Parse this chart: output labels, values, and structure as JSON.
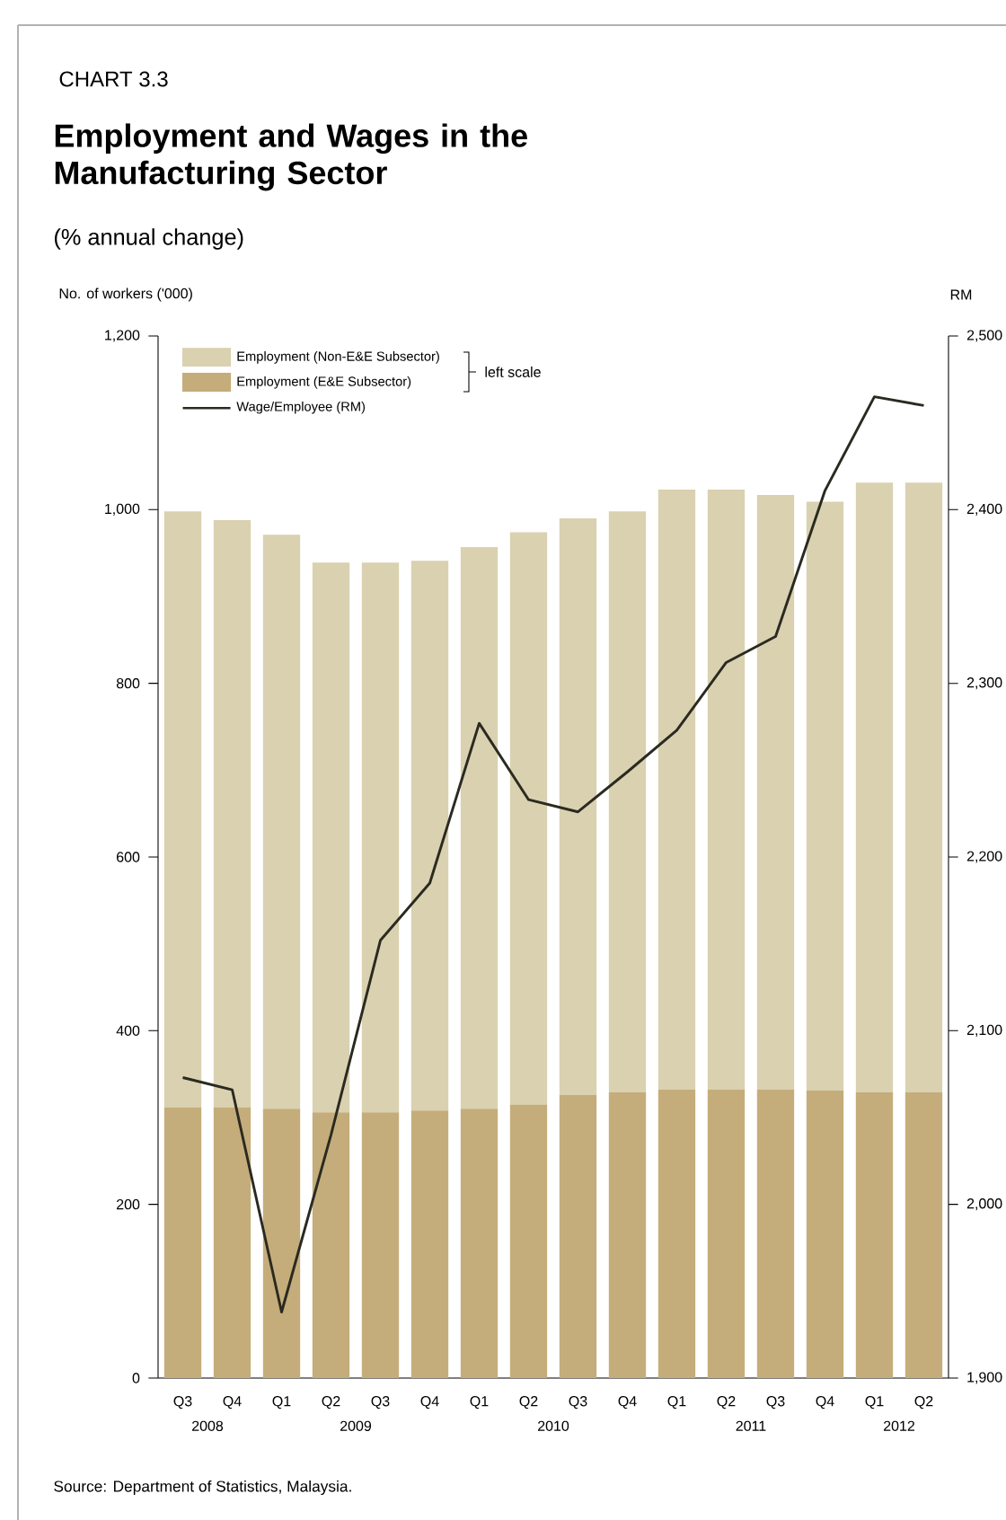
{
  "chart_data": {
    "type": "bar",
    "stacked": true,
    "title": "Employment and Wages in the Manufacturing Sector",
    "subtitle": "(% annual change)",
    "ylabel": "No. of workers ('000)",
    "y2label": "RM",
    "annotations": [
      "CHART 3.3",
      "left scale",
      "2008",
      "2009",
      "2010",
      "2011",
      "2012",
      "Source: Department of Statistics, Malaysia."
    ],
    "categories": [
      "Q3",
      "Q4",
      "Q1",
      "Q2",
      "Q3",
      "Q4",
      "Q1",
      "Q2",
      "Q3",
      "Q4",
      "Q1",
      "Q2",
      "Q3",
      "Q4",
      "Q1",
      "Q2"
    ],
    "series": [
      {
        "name": "Employment (E&E Subsector)",
        "color": "#c4ad7a",
        "values": [
          312,
          312,
          310,
          306,
          306,
          308,
          310,
          315,
          326,
          329,
          332,
          332,
          332,
          331,
          329,
          329
        ]
      },
      {
        "name": "Employment (Non-E&E Subsector)",
        "color": "#d9d1b0",
        "values": [
          686,
          676,
          661,
          633,
          633,
          633,
          647,
          659,
          664,
          669,
          691,
          691,
          685,
          678,
          702,
          702
        ]
      },
      {
        "name": "Wage/Employee (RM)",
        "type": "line",
        "axis": "y2",
        "color": "#2b2a20",
        "values": [
          2073,
          2066,
          1938,
          2040,
          2152,
          2185,
          2277,
          2233,
          2226,
          2249,
          2273,
          2312,
          2327,
          2411,
          2465,
          2460
        ]
      }
    ],
    "ylim": [
      0,
      1200
    ],
    "yticks": [
      0,
      200,
      400,
      600,
      800,
      {
        "value": 1000,
        "label": "1,000"
      },
      {
        "value": 1200,
        "label": "1,200"
      }
    ],
    "y2lim": [
      1900,
      2500
    ],
    "y2ticks": [
      {
        "value": 1900,
        "label": "1,900"
      },
      {
        "value": 2000,
        "label": "2,000"
      },
      {
        "value": 2100,
        "label": "2,100"
      },
      {
        "value": 2200,
        "label": "2,200"
      },
      {
        "value": 2300,
        "label": "2,300"
      },
      {
        "value": 2400,
        "label": "2,400"
      },
      {
        "value": 2500,
        "label": "2,500"
      }
    ],
    "legend": "top left",
    "marker": "none",
    "line_style": "solid"
  }
}
